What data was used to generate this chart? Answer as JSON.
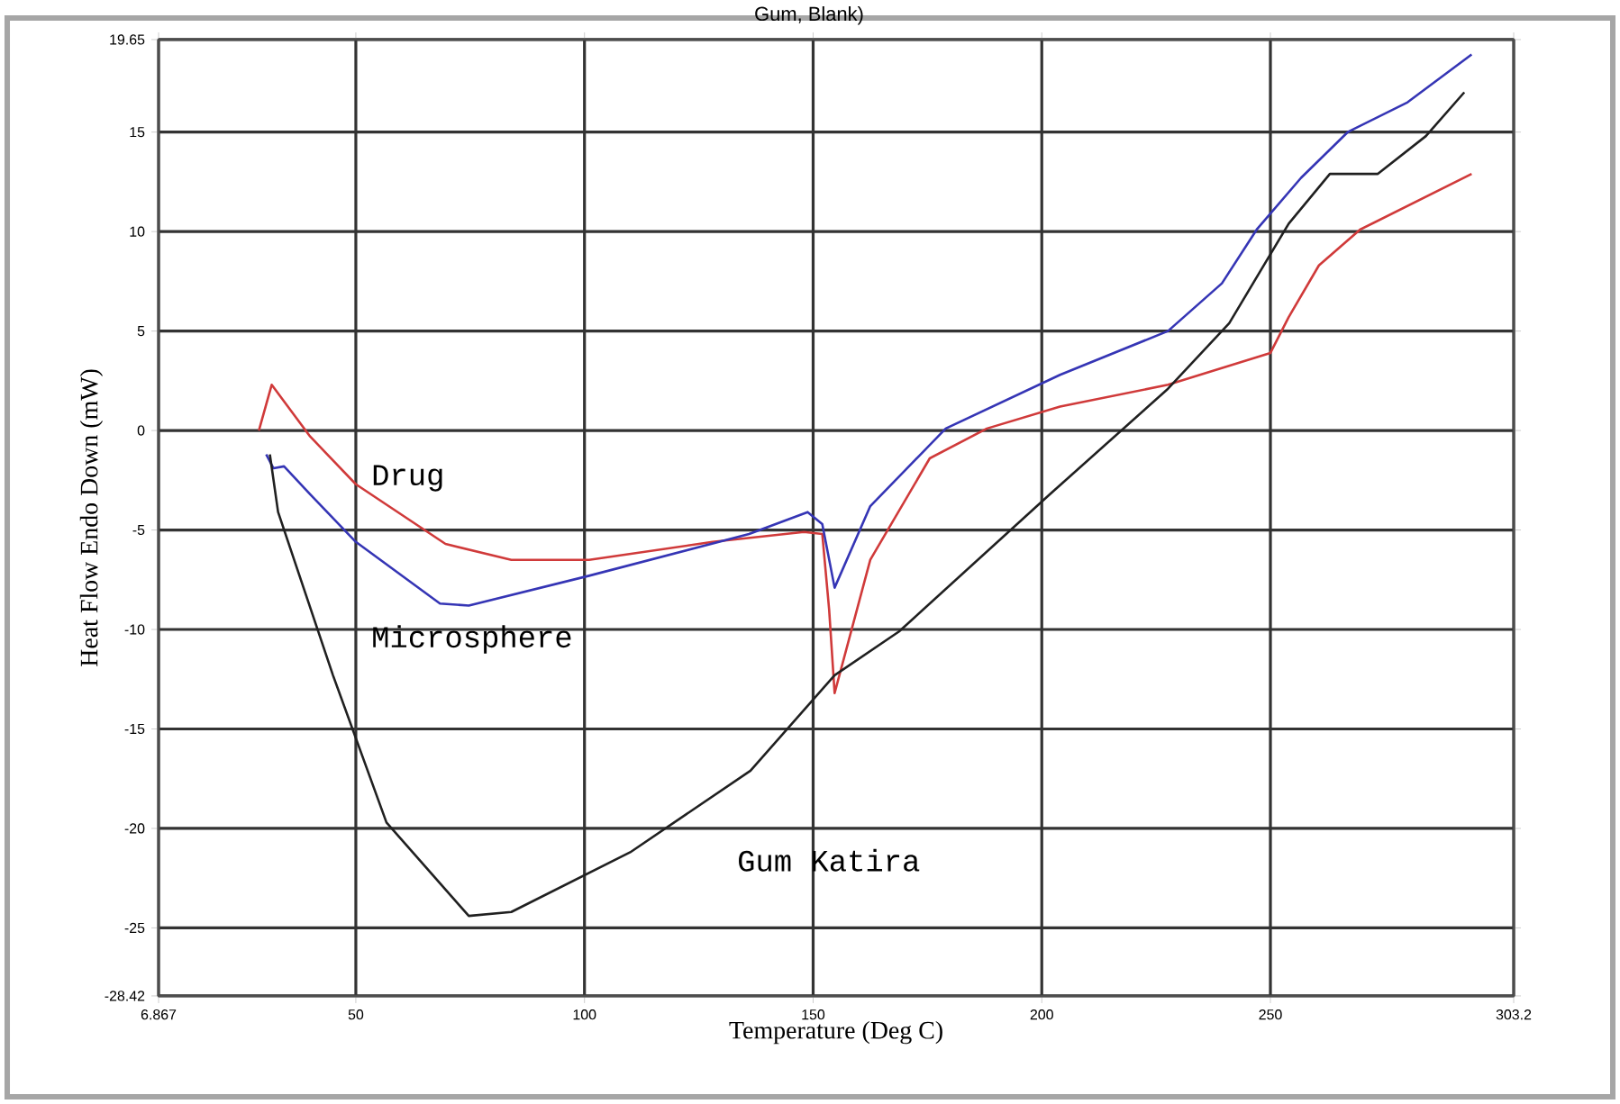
{
  "chart_data": {
    "type": "line",
    "title": "Gum, Blank)",
    "xlabel": "Temperature (Deg C)",
    "ylabel": "Heat Flow Endo Down (mW)",
    "xlim": [
      6.867,
      303.2
    ],
    "ylim": [
      -28.42,
      19.65
    ],
    "xticks": [
      6.867,
      50,
      100,
      150,
      200,
      250,
      303.2
    ],
    "yticks": [
      -28.42,
      -25,
      -20,
      -15,
      -10,
      -5,
      0,
      5,
      10,
      15,
      19.65
    ],
    "grid": true,
    "line_style": "solid",
    "marker": "none",
    "series": [
      {
        "name": "Drug",
        "color": "#d03a3a",
        "x": [
          28.8,
          31.6,
          40,
          50,
          69.6,
          84,
          101,
          128,
          148,
          152,
          153.5,
          154.7,
          162.5,
          175.5,
          188,
          204,
          227.6,
          250,
          254,
          260.6,
          269.6,
          294
        ],
        "values": [
          0,
          2.3,
          -0.3,
          -2.7,
          -5.7,
          -6.5,
          -6.5,
          -5.6,
          -5.1,
          -5.2,
          -9,
          -13.2,
          -6.5,
          -1.4,
          0.1,
          1.2,
          2.3,
          3.9,
          5.7,
          8.3,
          10.1,
          12.9
        ]
      },
      {
        "name": "Microsphere",
        "color": "#3535b5",
        "x": [
          30.4,
          32,
          34.3,
          40,
          50,
          68.4,
          74.7,
          101,
          136,
          148.8,
          152,
          154.7,
          162.5,
          179,
          204,
          227.6,
          239.4,
          247,
          256.7,
          266.9,
          280,
          294
        ],
        "values": [
          -1.2,
          -1.9,
          -1.8,
          -3.2,
          -5.6,
          -8.7,
          -8.8,
          -7.3,
          -5.2,
          -4.1,
          -4.7,
          -7.9,
          -3.8,
          0.1,
          2.8,
          5.0,
          7.4,
          10.1,
          12.7,
          15.0,
          16.5,
          18.9
        ]
      },
      {
        "name": "Gum Katira",
        "color": "#202020",
        "x": [
          31.2,
          33,
          45,
          56.7,
          74.7,
          84,
          110,
          136.3,
          154.7,
          168.8,
          201.8,
          227.6,
          241,
          254,
          263,
          273.5,
          284,
          292.4
        ],
        "values": [
          -1.2,
          -4.1,
          -12.3,
          -19.7,
          -24.4,
          -24.2,
          -21.2,
          -17.1,
          -12.3,
          -10.1,
          -3.2,
          2.1,
          5.4,
          10.4,
          12.9,
          12.9,
          14.8,
          17.0
        ]
      }
    ]
  }
}
